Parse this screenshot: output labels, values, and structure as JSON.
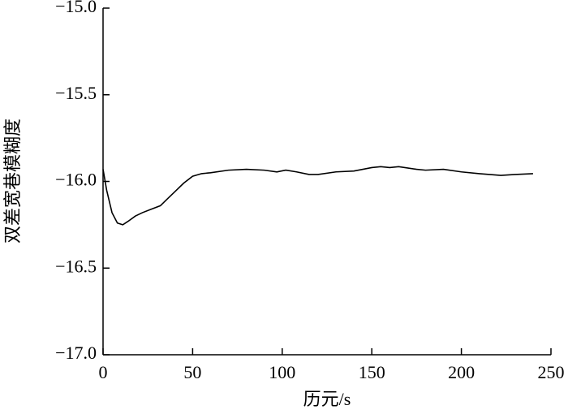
{
  "chart_data": {
    "type": "line",
    "x_label": "历元/s",
    "y_label": "双差宽巷模糊度",
    "xlim": [
      0,
      250
    ],
    "xticks": [
      0,
      50,
      100,
      150,
      200,
      250
    ],
    "ylim": [
      -17,
      -15
    ],
    "yticks": [
      {
        "value": -17,
        "label": "−17.0"
      },
      {
        "value": -16.5,
        "label": "−16.5"
      },
      {
        "value": -16,
        "label": "−16.0"
      },
      {
        "value": -15.5,
        "label": "−15.5"
      },
      {
        "value": -15,
        "label": "−15.0"
      }
    ],
    "x": [
      0,
      2,
      5,
      8,
      11,
      14,
      18,
      22,
      27,
      32,
      36,
      40,
      45,
      50,
      55,
      60,
      70,
      80,
      90,
      97,
      102,
      108,
      115,
      120,
      130,
      140,
      150,
      155,
      160,
      165,
      175,
      180,
      190,
      200,
      210,
      222,
      230,
      240
    ],
    "series": [
      {
        "color": "#000000",
        "values": [
          -15.93,
          -16.05,
          -16.18,
          -16.24,
          -16.25,
          -16.23,
          -16.2,
          -16.18,
          -16.16,
          -16.14,
          -16.1,
          -16.06,
          -16.01,
          -15.97,
          -15.955,
          -15.95,
          -15.935,
          -15.93,
          -15.935,
          -15.945,
          -15.935,
          -15.945,
          -15.96,
          -15.96,
          -15.945,
          -15.94,
          -15.92,
          -15.915,
          -15.92,
          -15.915,
          -15.93,
          -15.935,
          -15.93,
          -15.945,
          -15.955,
          -15.965,
          -15.96,
          -15.955
        ]
      }
    ]
  }
}
